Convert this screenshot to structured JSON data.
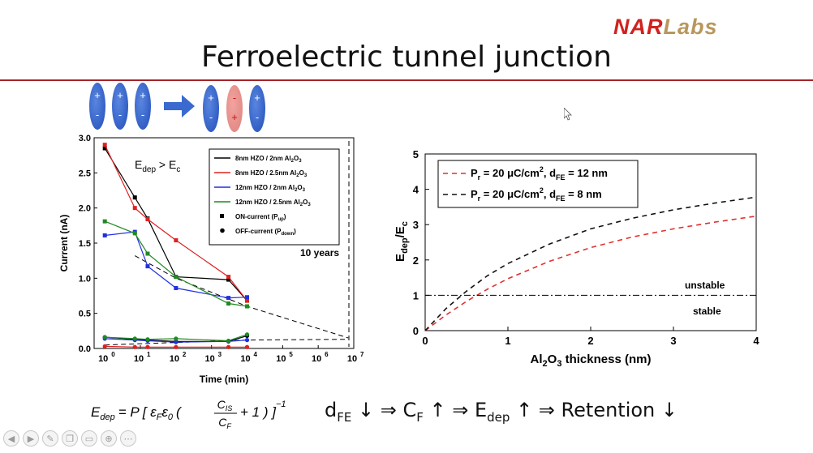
{
  "logo": {
    "part1": "NAR",
    "part2": "Labs",
    "color1": "#d0221f",
    "color2": "#b8975c"
  },
  "title": "Ferroelectric tunnel junction",
  "domains": {
    "before": [
      "+",
      "+",
      "+"
    ],
    "after": [
      "+",
      "-",
      "+"
    ],
    "before_bottom": [
      "-",
      "-",
      "-"
    ],
    "after_bottom": [
      "-",
      "+",
      "-"
    ]
  },
  "formula": {
    "lhs": "E",
    "lhs_sub": "dep",
    "rhs": "= P [ ε",
    "rhs_sub1": "F",
    "mid": "ε",
    "mid_sub": "0",
    "frac_num": "C",
    "frac_num_sub": "IS",
    "frac_den": "C",
    "frac_den_sub": "F",
    "tail": "+ 1 ) ]",
    "exp": "−1"
  },
  "chain": {
    "d": "d",
    "d_sub": "FE",
    "a1": "↓ ⇒ C",
    "c_sub": "F",
    "a2": "↑ ⇒ E",
    "e_sub": "dep",
    "a3": "↑ ⇒ Retention ↓"
  },
  "toolbar": {
    "icons": [
      "back-icon",
      "forward-icon",
      "pen-icon",
      "copy-icon",
      "screen-icon",
      "zoom-icon",
      "more-icon"
    ]
  },
  "chart_data": [
    {
      "type": "line",
      "xlabel": "Time (min)",
      "ylabel": "Current (nA)",
      "xscale": "log",
      "xlim": [
        0.5,
        10000000
      ],
      "ylim": [
        0,
        3.0
      ],
      "yticks": [
        "0.0",
        "0.5",
        "1.0",
        "1.5",
        "2.0",
        "2.5",
        "3.0"
      ],
      "xticks": [
        "10",
        "10",
        "10",
        "10",
        "10",
        "10",
        "10",
        "10"
      ],
      "xtick_exps": [
        "0",
        "1",
        "2",
        "3",
        "4",
        "5",
        "6",
        "7"
      ],
      "annotation": "E",
      "annotation_sub1": "dep",
      "annotation_mid": " > E",
      "annotation_sub2": "c",
      "annotation2": "10 years",
      "legend": [
        {
          "label": "8nm HZO / 2nm Al",
          "sub": "2",
          "tail": "O",
          "sub2": "3",
          "color": "#000000"
        },
        {
          "label": "8nm HZO / 2.5nm Al",
          "sub": "2",
          "tail": "O",
          "sub2": "3",
          "color": "#e02020"
        },
        {
          "label": "12nm HZO / 2nm Al",
          "sub": "2",
          "tail": "O",
          "sub2": "3",
          "color": "#2030e0"
        },
        {
          "label": "12nm HZO / 2.5nm Al",
          "sub": "2",
          "tail": "O",
          "sub2": "3",
          "color": "#208a20"
        },
        {
          "label": "ON-current (P",
          "sub": "up",
          "tail": ")",
          "marker": "square"
        },
        {
          "label": "OFF-current (P",
          "sub": "down",
          "tail": ")",
          "marker": "circle"
        }
      ],
      "series": [
        {
          "color": "#000000",
          "on": [
            [
              1,
              2.85
            ],
            [
              7,
              2.15
            ],
            [
              16,
              1.85
            ],
            [
              100,
              1.02
            ],
            [
              3000,
              0.98
            ],
            [
              10000,
              0.68
            ]
          ],
          "off": [
            [
              1,
              0.16
            ],
            [
              7,
              0.13
            ],
            [
              16,
              0.12
            ],
            [
              100,
              0.1
            ],
            [
              3000,
              0.1
            ],
            [
              10000,
              0.18
            ]
          ]
        },
        {
          "color": "#e02020",
          "on": [
            [
              1,
              2.9
            ],
            [
              7,
              2.0
            ],
            [
              16,
              1.84
            ],
            [
              100,
              1.54
            ],
            [
              3000,
              1.02
            ],
            [
              10000,
              0.68
            ]
          ],
          "off": [
            [
              1,
              0.03
            ],
            [
              7,
              0.02
            ],
            [
              16,
              0.02
            ],
            [
              100,
              0.02
            ],
            [
              3000,
              0.02
            ],
            [
              10000,
              0.02
            ]
          ]
        },
        {
          "color": "#2030e0",
          "on": [
            [
              1,
              1.61
            ],
            [
              7,
              1.66
            ],
            [
              16,
              1.17
            ],
            [
              100,
              0.86
            ],
            [
              3000,
              0.72
            ],
            [
              10000,
              0.73
            ]
          ],
          "off": [
            [
              1,
              0.14
            ],
            [
              7,
              0.12
            ],
            [
              16,
              0.11
            ],
            [
              100,
              0.09
            ],
            [
              3000,
              0.1
            ],
            [
              10000,
              0.12
            ]
          ]
        },
        {
          "color": "#208a20",
          "on": [
            [
              1,
              1.81
            ],
            [
              7,
              1.64
            ],
            [
              16,
              1.35
            ],
            [
              100,
              1.02
            ],
            [
              3000,
              0.64
            ],
            [
              10000,
              0.6
            ]
          ],
          "off": [
            [
              1,
              0.16
            ],
            [
              7,
              0.14
            ],
            [
              16,
              0.13
            ],
            [
              100,
              0.14
            ],
            [
              3000,
              0.11
            ],
            [
              10000,
              0.2
            ]
          ]
        }
      ],
      "trend": [
        [
          7,
          1.32
        ],
        [
          100,
          1.0
        ],
        [
          10000,
          0.6
        ],
        [
          7000000,
          0.15
        ]
      ],
      "off_trend": [
        [
          1,
          0.05
        ],
        [
          10000,
          0.12
        ],
        [
          7000000,
          0.13
        ]
      ]
    },
    {
      "type": "line",
      "xlabel": "Al",
      "xlabel_sub": "2",
      "xlabel_tail": "O",
      "xlabel_sub2": "3",
      "xlabel_end": " thickness (nm)",
      "ylabel": "E",
      "ylabel_sub1": "dep",
      "ylabel_mid": "/E",
      "ylabel_sub2": "c",
      "xlim": [
        0,
        4
      ],
      "ylim": [
        0,
        5
      ],
      "xticks": [
        "0",
        "1",
        "2",
        "3",
        "4"
      ],
      "yticks": [
        "0",
        "1",
        "2",
        "3",
        "4",
        "5"
      ],
      "threshold": 1,
      "label_unstable": "unstable",
      "label_stable": "stable",
      "legend": [
        {
          "label": "P",
          "sub": "r",
          "tail": " = 20 μC/cm",
          "sup": "2",
          "tail2": ", d",
          "sub2": "FE",
          "tail3": " = 12 nm",
          "color": "#e03030",
          "dash": "6,5"
        },
        {
          "label": "P",
          "sub": "r",
          "tail": " = 20 μC/cm",
          "sup": "2",
          "tail2": ", d",
          "sub2": "FE",
          "tail3": " = 8 nm",
          "color": "#111111",
          "dash": "6,5"
        }
      ],
      "series": [
        {
          "name_ref": 0,
          "color": "#e03030",
          "x": [
            0,
            0.25,
            0.5,
            0.75,
            1,
            1.5,
            2,
            2.5,
            3,
            3.5,
            4
          ],
          "y": [
            0,
            0.44,
            0.83,
            1.17,
            1.47,
            1.96,
            2.35,
            2.65,
            2.88,
            3.07,
            3.24
          ]
        },
        {
          "name_ref": 1,
          "color": "#111111",
          "x": [
            0,
            0.25,
            0.5,
            0.75,
            1,
            1.5,
            2,
            2.5,
            3,
            3.5,
            4
          ],
          "y": [
            0,
            0.62,
            1.12,
            1.55,
            1.9,
            2.45,
            2.88,
            3.18,
            3.42,
            3.61,
            3.78
          ]
        }
      ]
    }
  ]
}
